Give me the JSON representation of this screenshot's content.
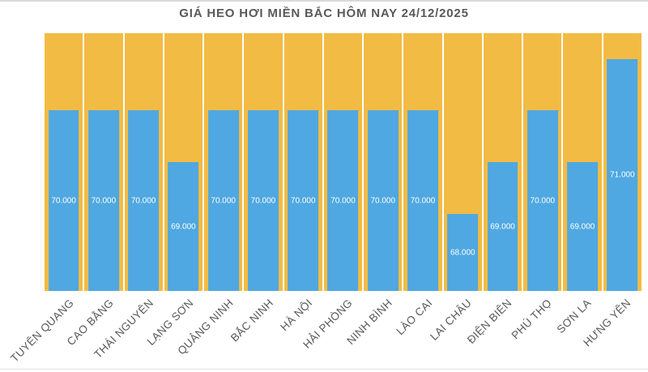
{
  "chart_data": {
    "type": "bar",
    "title": "GIÁ HEO HƠI MIỀN BẮC HÔM NAY 24/12/2025",
    "categories": [
      "TUYÊN QUANG",
      "CAO BẰNG",
      "THÁI NGUYÊN",
      "LẠNG SƠN",
      "QUẢNG NINH",
      "BẮC NINH",
      "HÀ NỘI",
      "HẢI PHÒNG",
      "NINH BÌNH",
      "LÀO CAI",
      "LAI CHÂU",
      "ĐIỆN BIÊN",
      "PHÚ THỌ",
      "SƠN LA",
      "HƯNG YÊN"
    ],
    "values": [
      70000,
      70000,
      70000,
      69000,
      70000,
      70000,
      70000,
      70000,
      70000,
      70000,
      68000,
      69000,
      70000,
      69000,
      71000
    ],
    "value_labels": [
      "70.000",
      "70.000",
      "70.000",
      "69.000",
      "70.000",
      "70.000",
      "70.000",
      "70.000",
      "70.000",
      "70.000",
      "68.000",
      "69.000",
      "70.000",
      "69.000",
      "71.000"
    ],
    "xlabel": "",
    "ylabel": "",
    "ylim": [
      66500,
      71500
    ],
    "grid": "off",
    "legend": "none",
    "colors": {
      "bar": "#4FA8E1",
      "plot_background": "#F2BB44",
      "separator": "#FFFFFF",
      "value_label": "#FFFFFF",
      "axis_label": "#595959",
      "title": "#595959",
      "frame_border": "#D9D9D9"
    }
  }
}
